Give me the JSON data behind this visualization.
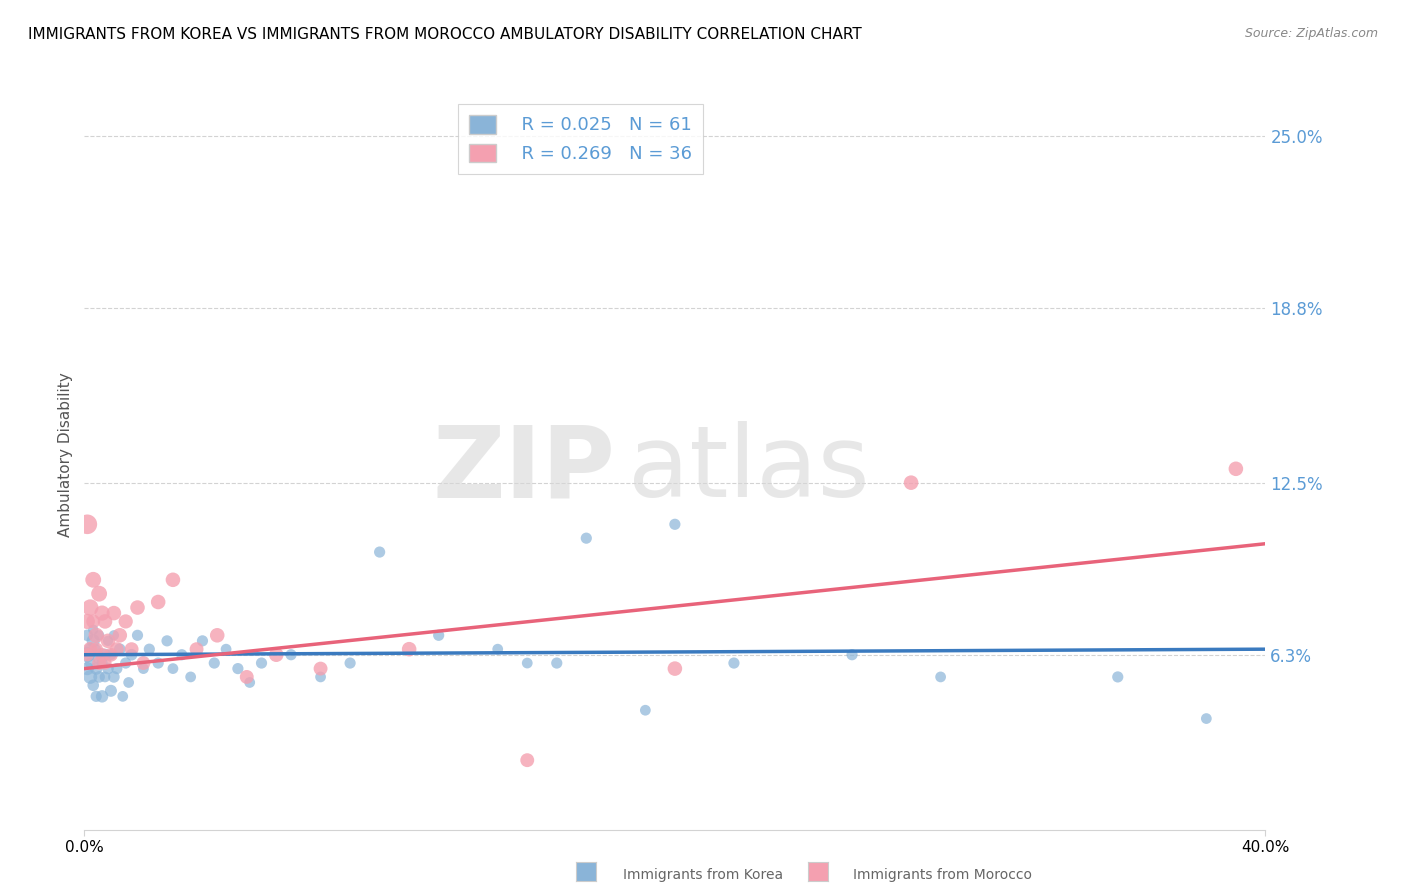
{
  "title": "IMMIGRANTS FROM KOREA VS IMMIGRANTS FROM MOROCCO AMBULATORY DISABILITY CORRELATION CHART",
  "source": "Source: ZipAtlas.com",
  "ylabel": "Ambulatory Disability",
  "yticks": [
    "6.3%",
    "12.5%",
    "18.8%",
    "25.0%"
  ],
  "ytick_vals": [
    0.063,
    0.125,
    0.188,
    0.25
  ],
  "xrange": [
    0.0,
    0.4
  ],
  "yrange": [
    0.0,
    0.27
  ],
  "legend_korea_R": "0.025",
  "legend_korea_N": "61",
  "legend_morocco_R": "0.269",
  "legend_morocco_N": "36",
  "korea_color": "#8ab4d8",
  "morocco_color": "#f4a0b0",
  "trendline_korea_color": "#3a7abf",
  "trendline_morocco_color": "#e8637a",
  "watermark_zip": "ZIP",
  "watermark_atlas": "atlas",
  "korea_trendline_x": [
    0.0,
    0.4
  ],
  "korea_trendline_y": [
    0.063,
    0.065
  ],
  "morocco_trendline_x": [
    0.0,
    0.4
  ],
  "morocco_trendline_y": [
    0.058,
    0.103
  ],
  "korea_scatter_x": [
    0.001,
    0.001,
    0.001,
    0.002,
    0.002,
    0.002,
    0.003,
    0.003,
    0.003,
    0.004,
    0.004,
    0.004,
    0.005,
    0.005,
    0.005,
    0.006,
    0.006,
    0.007,
    0.007,
    0.008,
    0.008,
    0.009,
    0.009,
    0.01,
    0.01,
    0.011,
    0.012,
    0.013,
    0.014,
    0.015,
    0.016,
    0.018,
    0.02,
    0.022,
    0.025,
    0.028,
    0.03,
    0.033,
    0.036,
    0.04,
    0.044,
    0.048,
    0.052,
    0.056,
    0.06,
    0.07,
    0.08,
    0.09,
    0.1,
    0.12,
    0.14,
    0.16,
    0.19,
    0.22,
    0.26,
    0.29,
    0.2,
    0.17,
    0.15,
    0.35,
    0.38
  ],
  "korea_scatter_y": [
    0.063,
    0.058,
    0.07,
    0.055,
    0.065,
    0.06,
    0.068,
    0.052,
    0.072,
    0.058,
    0.048,
    0.065,
    0.062,
    0.055,
    0.07,
    0.048,
    0.06,
    0.063,
    0.055,
    0.058,
    0.068,
    0.05,
    0.063,
    0.055,
    0.07,
    0.058,
    0.065,
    0.048,
    0.06,
    0.053,
    0.063,
    0.07,
    0.058,
    0.065,
    0.06,
    0.068,
    0.058,
    0.063,
    0.055,
    0.068,
    0.06,
    0.065,
    0.058,
    0.053,
    0.06,
    0.063,
    0.055,
    0.06,
    0.1,
    0.07,
    0.065,
    0.06,
    0.043,
    0.06,
    0.063,
    0.055,
    0.11,
    0.105,
    0.06,
    0.055,
    0.04
  ],
  "korea_scatter_size": [
    120,
    90,
    70,
    100,
    80,
    60,
    90,
    70,
    55,
    80,
    65,
    50,
    90,
    70,
    55,
    80,
    65,
    75,
    60,
    70,
    55,
    75,
    60,
    70,
    55,
    65,
    70,
    60,
    65,
    60,
    70,
    65,
    60,
    65,
    65,
    65,
    60,
    65,
    60,
    65,
    65,
    60,
    65,
    60,
    65,
    65,
    60,
    65,
    65,
    65,
    60,
    65,
    60,
    65,
    65,
    60,
    65,
    65,
    60,
    65,
    60
  ],
  "morocco_scatter_x": [
    0.001,
    0.001,
    0.001,
    0.002,
    0.002,
    0.003,
    0.003,
    0.004,
    0.004,
    0.005,
    0.005,
    0.006,
    0.006,
    0.007,
    0.007,
    0.008,
    0.009,
    0.01,
    0.011,
    0.012,
    0.014,
    0.016,
    0.018,
    0.02,
    0.025,
    0.03,
    0.038,
    0.045,
    0.055,
    0.065,
    0.08,
    0.11,
    0.15,
    0.2,
    0.28,
    0.39
  ],
  "morocco_scatter_y": [
    0.11,
    0.075,
    0.063,
    0.08,
    0.065,
    0.09,
    0.075,
    0.07,
    0.065,
    0.085,
    0.06,
    0.078,
    0.063,
    0.075,
    0.06,
    0.068,
    0.063,
    0.078,
    0.065,
    0.07,
    0.075,
    0.065,
    0.08,
    0.06,
    0.082,
    0.09,
    0.065,
    0.07,
    0.055,
    0.063,
    0.058,
    0.065,
    0.025,
    0.058,
    0.125,
    0.13
  ],
  "morocco_scatter_size": [
    200,
    120,
    90,
    140,
    110,
    130,
    100,
    120,
    95,
    130,
    100,
    120,
    95,
    110,
    90,
    110,
    100,
    110,
    100,
    110,
    105,
    100,
    110,
    100,
    110,
    110,
    100,
    110,
    100,
    110,
    100,
    110,
    100,
    110,
    110,
    110
  ]
}
